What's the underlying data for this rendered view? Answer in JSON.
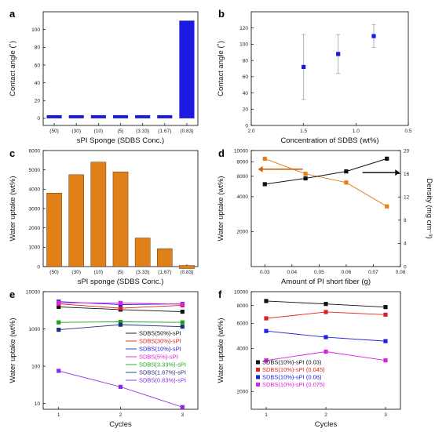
{
  "panel_labels": [
    "a",
    "b",
    "c",
    "d",
    "e",
    "f"
  ],
  "chart_data": [
    {
      "panel": "a",
      "type": "bar",
      "categories": [
        "(50)",
        "(30)",
        "(10)",
        "(5)",
        "(3.33)",
        "(1.67)",
        "(0.83)"
      ],
      "values": [
        0,
        0,
        0,
        0,
        0,
        0,
        110
      ],
      "xlabel": "sPI Sponge (SDBS Conc.)",
      "ylabel": "Contact angle (˚)",
      "ylim": [
        -8,
        120
      ],
      "yticks": [
        0,
        20,
        40,
        60,
        80,
        100
      ],
      "color": "#1a1ae0"
    },
    {
      "panel": "b",
      "type": "scatter",
      "x": [
        1.5,
        1.17,
        0.83
      ],
      "y": [
        72,
        88,
        110
      ],
      "yerr": [
        40,
        24,
        14
      ],
      "xlabel": "Concentration of SDBS (wt%)",
      "ylabel": "Contact angle (˚)",
      "xlim": [
        2.0,
        0.5
      ],
      "xticks": [
        "2.0",
        "1.5",
        "1.0",
        "0.5"
      ],
      "ylim": [
        0,
        140
      ],
      "yticks": [
        0,
        20,
        40,
        60,
        80,
        100,
        120
      ],
      "color": "#1a1ae0"
    },
    {
      "panel": "c",
      "type": "bar",
      "categories": [
        "(50)",
        "(30)",
        "(10)",
        "(5)",
        "(3.33)",
        "(1.67)",
        "(0.83)"
      ],
      "values": [
        3800,
        4750,
        5400,
        4900,
        1480,
        920,
        60
      ],
      "xlabel": "sPI sponge (SDBS Conc.)",
      "ylabel": "Water uptake (wt%)",
      "ylim": [
        0,
        6000
      ],
      "yticks": [
        0,
        1000,
        2000,
        3000,
        4000,
        5000,
        6000
      ],
      "color": "#e08018"
    },
    {
      "panel": "d",
      "type": "line",
      "x": [
        0.03,
        0.045,
        0.06,
        0.075
      ],
      "xlabel": "Amount of PI short fiber (g)",
      "xlim": [
        0.025,
        0.08
      ],
      "xticks": [
        "0.03",
        "0.04",
        "0.05",
        "0.06",
        "0.07",
        "0.08"
      ],
      "ylabel": "Water uptake (wt%)",
      "ylabel_right": "Density  (mg cm⁻³)",
      "yscale": "log",
      "ylim": [
        1000,
        10000
      ],
      "yticks": [
        "2000",
        "4000",
        "6000",
        "8000",
        "10000"
      ],
      "ylim_right": [
        0,
        20
      ],
      "yticks_right": [
        "0",
        "4",
        "8",
        "12",
        "16",
        "20"
      ],
      "series": [
        {
          "axis": "left",
          "values": [
            8500,
            6300,
            5300,
            3300
          ],
          "color": "#e08018"
        },
        {
          "axis": "right",
          "values": [
            14.2,
            15.2,
            16.4,
            18.6
          ],
          "color": "#111111"
        }
      ]
    },
    {
      "panel": "e",
      "type": "line",
      "x": [
        1,
        2,
        3
      ],
      "xlabel": "Cycles",
      "xticks": [
        "1",
        "2",
        "3"
      ],
      "ylabel": "Water uptake (wt%)",
      "yscale": "log",
      "ylim": [
        7,
        10000
      ],
      "yticks": [
        "10",
        "100",
        "1000",
        "10000"
      ],
      "series": [
        {
          "name": "SDBS(50%)-sPI",
          "values": [
            3900,
            3300,
            2900
          ],
          "color": "#111111"
        },
        {
          "name": "SDBS(30%)-sPI",
          "values": [
            4700,
            3600,
            4300
          ],
          "color": "#e02020"
        },
        {
          "name": "SDBS(10%)-sPI",
          "values": [
            5400,
            4500,
            4700
          ],
          "color": "#2020e0"
        },
        {
          "name": "SDBS(5%)-sPI",
          "values": [
            5000,
            5000,
            4600
          ],
          "color": "#e020e0"
        },
        {
          "name": "SDBS(3.33%)-sPI",
          "values": [
            1500,
            1550,
            1500
          ],
          "color": "#20a020"
        },
        {
          "name": "SDBS(1.67%)-sPI",
          "values": [
            950,
            1300,
            1150
          ],
          "color": "#203080"
        },
        {
          "name": "SDBS(0.83%)-sPI",
          "values": [
            75,
            28,
            8
          ],
          "color": "#8a2be2"
        }
      ]
    },
    {
      "panel": "f",
      "type": "line",
      "x": [
        1,
        2,
        3
      ],
      "xlabel": "Cycles",
      "xticks": [
        "1",
        "2",
        "3"
      ],
      "ylabel": "Water uptake (wt%)",
      "yscale": "log",
      "ylim": [
        1500,
        10000
      ],
      "yticks": [
        "2000",
        "4000",
        "6000",
        "8000",
        "10000"
      ],
      "series": [
        {
          "name": "SDBS(10%)-sPI (0.03)",
          "values": [
            8600,
            8200,
            7800
          ],
          "color": "#111111"
        },
        {
          "name": "SDBS(10%)-sPI (0.045)",
          "values": [
            6500,
            7200,
            6900
          ],
          "color": "#e02020"
        },
        {
          "name": "SDBS(10%)-sPI (0.06)",
          "values": [
            5300,
            4800,
            4500
          ],
          "color": "#2020e0"
        },
        {
          "name": "SDBS(10%)-sPI (0.075)",
          "values": [
            3300,
            3800,
            3300
          ],
          "color": "#e020e0"
        }
      ]
    }
  ]
}
